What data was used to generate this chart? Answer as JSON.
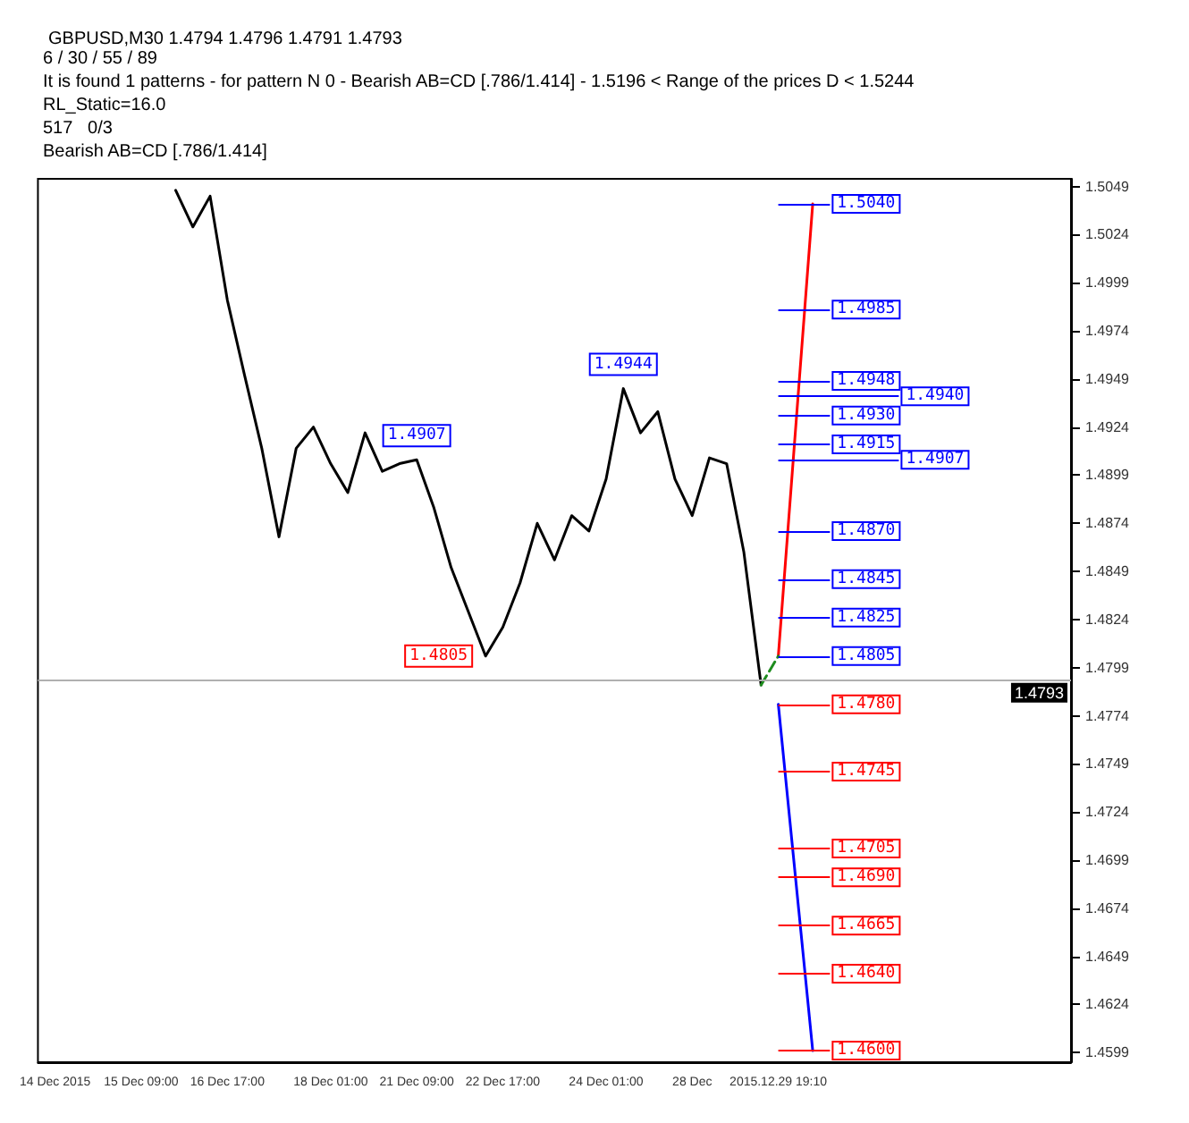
{
  "chart_data": {
    "type": "line",
    "title": "GBPUSD,M30 1.4794 1.4796 1.4791 1.4793",
    "annotations": [
      "6 / 30 / 55 / 89",
      "It is found 1 patterns - for pattern N 0 - Bearish AB=CD [.786/1.414] - 1.5196 < Range of the prices D < 1.5244",
      "RL_Static=16.0",
      "517   0/3",
      "Bearish AB=CD [.786/1.414]"
    ],
    "categories": [
      null,
      "14 Dec 2015",
      null,
      null,
      null,
      null,
      "15 Dec 09:00",
      null,
      null,
      null,
      null,
      "16 Dec 17:00",
      null,
      null,
      null,
      null,
      null,
      "18 Dec 01:00",
      null,
      null,
      null,
      null,
      "21 Dec 09:00",
      null,
      null,
      null,
      null,
      "22 Dec 17:00",
      null,
      null,
      null,
      null,
      null,
      "24 Dec 01:00",
      null,
      null,
      null,
      null,
      "28 Dec",
      null,
      null,
      null,
      null,
      "2015.12.29 19:10",
      null,
      null,
      null,
      null,
      null,
      null,
      null,
      null,
      null,
      null,
      null,
      null,
      null,
      null,
      null,
      null,
      null
    ],
    "ylim": [
      1.4594,
      1.5053
    ],
    "yticks": [
      1.4599,
      1.4624,
      1.4649,
      1.4674,
      1.4699,
      1.4724,
      1.4749,
      1.4774,
      1.4799,
      1.4824,
      1.4849,
      1.4874,
      1.4899,
      1.4924,
      1.4949,
      1.4974,
      1.4999,
      1.5024,
      1.5049
    ],
    "series": [
      {
        "color": "#000000",
        "values": [
          null,
          null,
          null,
          null,
          null,
          null,
          null,
          null,
          1.5047,
          1.5028,
          1.5044,
          1.499,
          1.4951,
          1.4913,
          1.4867,
          1.4913,
          1.4924,
          1.4905,
          1.489,
          1.4921,
          1.4901,
          1.4905,
          1.4907,
          1.4882,
          1.4851,
          1.4828,
          1.4805,
          1.482,
          1.4843,
          1.4874,
          1.4855,
          1.4878,
          1.487,
          1.4897,
          1.4944,
          1.4921,
          1.4932,
          1.4897,
          1.4878,
          1.4908,
          1.4905,
          1.4859,
          1.479,
          null,
          null,
          null,
          null,
          null,
          null,
          null,
          null,
          null,
          null,
          null,
          null,
          null,
          null,
          null,
          null,
          null,
          null
        ],
        "value_labels": [
          null,
          null,
          null,
          null,
          null,
          null,
          null,
          null,
          null,
          null,
          null,
          null,
          null,
          null,
          null,
          null,
          null,
          null,
          null,
          null,
          null,
          null,
          "1.4907",
          null,
          null,
          null,
          "1.4805",
          null,
          null,
          null,
          null,
          null,
          null,
          null,
          "1.4944",
          null,
          null,
          null,
          null,
          null,
          null,
          null,
          null,
          null,
          null,
          null,
          null,
          null,
          null,
          null,
          null,
          null,
          null,
          null,
          null,
          null,
          null,
          null,
          null,
          null,
          null
        ]
      },
      {
        "color": "#ff0000",
        "values": [
          null,
          null,
          null,
          null,
          null,
          null,
          null,
          null,
          null,
          null,
          null,
          null,
          null,
          null,
          null,
          null,
          null,
          null,
          null,
          null,
          null,
          null,
          null,
          null,
          null,
          null,
          null,
          null,
          null,
          null,
          null,
          null,
          null,
          null,
          null,
          null,
          null,
          null,
          null,
          null,
          null,
          null,
          null,
          1.4805,
          null,
          1.504,
          null,
          null,
          null,
          null,
          null,
          null,
          null,
          null,
          null,
          null,
          null,
          null,
          null,
          null,
          null
        ]
      },
      {
        "color": "#0000ff",
        "values": [
          null,
          null,
          null,
          null,
          null,
          null,
          null,
          null,
          null,
          null,
          null,
          null,
          null,
          null,
          null,
          null,
          null,
          null,
          null,
          null,
          null,
          null,
          null,
          null,
          null,
          null,
          null,
          null,
          null,
          null,
          null,
          null,
          null,
          null,
          null,
          null,
          null,
          null,
          null,
          null,
          null,
          null,
          null,
          1.478,
          null,
          1.46,
          null,
          null,
          null,
          null,
          null,
          null,
          null,
          null,
          null,
          null,
          null,
          null,
          null,
          null,
          null
        ]
      },
      {
        "color": "#1e8c1e",
        "line_style": "dashed",
        "values": [
          null,
          null,
          null,
          null,
          null,
          null,
          null,
          null,
          null,
          null,
          null,
          null,
          null,
          null,
          null,
          null,
          null,
          null,
          null,
          null,
          null,
          null,
          null,
          null,
          null,
          null,
          null,
          null,
          null,
          null,
          null,
          null,
          null,
          null,
          null,
          null,
          null,
          null,
          null,
          null,
          null,
          null,
          1.479,
          1.4805,
          null,
          null,
          null,
          null,
          null,
          null,
          null,
          null,
          null,
          null,
          null,
          null,
          null,
          null,
          null,
          null,
          null
        ]
      }
    ],
    "ref_lines": [
      {
        "axis": "y",
        "value": 1.4793,
        "label": "1.4793"
      },
      {
        "axis": "y",
        "value": 1.504,
        "label": "1.5040",
        "color": "#0000ff"
      },
      {
        "axis": "y",
        "value": 1.4985,
        "label": "1.4985",
        "color": "#0000ff"
      },
      {
        "axis": "y",
        "value": 1.4948,
        "label": "1.4948",
        "color": "#0000ff"
      },
      {
        "axis": "y",
        "value": 1.494,
        "label": "1.4940",
        "color": "#0000ff"
      },
      {
        "axis": "y",
        "value": 1.493,
        "label": "1.4930",
        "color": "#0000ff"
      },
      {
        "axis": "y",
        "value": 1.4915,
        "label": "1.4915",
        "color": "#0000ff"
      },
      {
        "axis": "y",
        "value": 1.4907,
        "label": "1.4907",
        "color": "#0000ff"
      },
      {
        "axis": "y",
        "value": 1.487,
        "label": "1.4870",
        "color": "#0000ff"
      },
      {
        "axis": "y",
        "value": 1.4845,
        "label": "1.4845",
        "color": "#0000ff"
      },
      {
        "axis": "y",
        "value": 1.4825,
        "label": "1.4825",
        "color": "#0000ff"
      },
      {
        "axis": "y",
        "value": 1.4805,
        "label": "1.4805",
        "color": "#0000ff"
      },
      {
        "axis": "y",
        "value": 1.478,
        "label": "1.4780",
        "color": "#ff0000"
      },
      {
        "axis": "y",
        "value": 1.4745,
        "label": "1.4745",
        "color": "#ff0000"
      },
      {
        "axis": "y",
        "value": 1.4705,
        "label": "1.4705",
        "color": "#ff0000"
      },
      {
        "axis": "y",
        "value": 1.469,
        "label": "1.4690",
        "color": "#ff0000"
      },
      {
        "axis": "y",
        "value": 1.4665,
        "label": "1.4665",
        "color": "#ff0000"
      },
      {
        "axis": "y",
        "value": 1.464,
        "label": "1.4640",
        "color": "#ff0000"
      },
      {
        "axis": "y",
        "value": 1.46,
        "label": "1.4600",
        "color": "#ff0000"
      }
    ]
  }
}
